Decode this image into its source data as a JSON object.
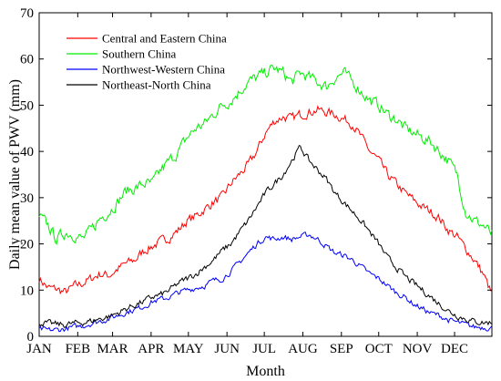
{
  "chart_data": {
    "type": "line",
    "title": "",
    "xlabel": "Month",
    "ylabel": "Daily mean value of PWV (mm)",
    "ylim": [
      0,
      70
    ],
    "xlim": [
      1,
      365
    ],
    "yticks": [
      0,
      10,
      20,
      30,
      40,
      50,
      60,
      70
    ],
    "month_ticks": [
      {
        "label": "JAN",
        "day": 1
      },
      {
        "label": "FEB",
        "day": 32
      },
      {
        "label": "MAR",
        "day": 60
      },
      {
        "label": "APR",
        "day": 91
      },
      {
        "label": "MAY",
        "day": 121
      },
      {
        "label": "JUN",
        "day": 152
      },
      {
        "label": "JUL",
        "day": 182
      },
      {
        "label": "AUG",
        "day": 213
      },
      {
        "label": "SEP",
        "day": 244
      },
      {
        "label": "OCT",
        "day": 274
      },
      {
        "label": "NOV",
        "day": 305
      },
      {
        "label": "DEC",
        "day": 335
      }
    ],
    "grid": false,
    "legend_position": "top-left",
    "series": [
      {
        "name": "Central and Eastern China",
        "color": "#ff0000",
        "x": [
          1,
          8,
          15,
          22,
          29,
          36,
          43,
          50,
          57,
          64,
          71,
          78,
          85,
          92,
          99,
          106,
          113,
          120,
          127,
          134,
          141,
          148,
          155,
          162,
          169,
          176,
          183,
          190,
          197,
          204,
          211,
          218,
          225,
          232,
          239,
          246,
          253,
          260,
          267,
          274,
          281,
          288,
          295,
          302,
          309,
          316,
          323,
          330,
          337,
          344,
          351,
          358,
          365
        ],
        "values": [
          12.5,
          10.5,
          10.2,
          9.5,
          10.8,
          11.5,
          12.5,
          13.5,
          13.2,
          14.5,
          15.8,
          16.5,
          18.5,
          19.5,
          20.5,
          21.5,
          23,
          25,
          26,
          27.5,
          29,
          30,
          33,
          35,
          37,
          40,
          44,
          46.5,
          47.5,
          47,
          48,
          48.5,
          49,
          48.5,
          48,
          47,
          46,
          43,
          40,
          38,
          35,
          33,
          31,
          29.5,
          28,
          27,
          25.5,
          23,
          21.5,
          19,
          16.5,
          13.5,
          9
        ]
      },
      {
        "name": "Southern China",
        "color": "#00ee00",
        "x": [
          1,
          8,
          15,
          22,
          29,
          36,
          43,
          50,
          57,
          64,
          71,
          78,
          85,
          92,
          99,
          106,
          113,
          120,
          127,
          134,
          141,
          148,
          155,
          162,
          169,
          176,
          183,
          190,
          197,
          204,
          211,
          218,
          225,
          232,
          239,
          246,
          253,
          260,
          267,
          274,
          281,
          288,
          295,
          302,
          309,
          316,
          323,
          330,
          337,
          344,
          351,
          358,
          365
        ],
        "values": [
          26,
          24,
          21,
          22.5,
          22,
          21,
          23,
          25.5,
          27,
          29,
          31.5,
          32,
          33,
          33,
          36,
          38,
          40,
          43,
          45,
          46,
          48,
          50,
          51,
          53,
          55,
          56,
          57,
          58,
          57,
          55,
          57,
          56,
          55,
          54,
          56,
          57,
          55,
          53,
          51,
          50,
          48,
          47,
          45,
          44,
          43,
          42,
          40,
          38,
          35,
          27,
          25,
          24,
          22
        ]
      },
      {
        "name": "Northwest-Western China",
        "color": "#0000ff",
        "x": [
          1,
          8,
          15,
          22,
          29,
          36,
          43,
          50,
          57,
          64,
          71,
          78,
          85,
          92,
          99,
          106,
          113,
          120,
          127,
          134,
          141,
          148,
          155,
          162,
          169,
          176,
          183,
          190,
          197,
          204,
          211,
          218,
          225,
          232,
          239,
          246,
          253,
          260,
          267,
          274,
          281,
          288,
          295,
          302,
          309,
          316,
          323,
          330,
          337,
          344,
          351,
          358,
          365
        ],
        "values": [
          1.5,
          1.3,
          1.4,
          1.6,
          2,
          2.3,
          2.8,
          3.3,
          3.8,
          4.5,
          5.2,
          5.8,
          6.5,
          7.5,
          8,
          8.5,
          9.5,
          10,
          10.5,
          11,
          12,
          12.5,
          14,
          16,
          18,
          20,
          21.5,
          21,
          21.5,
          21,
          21.5,
          22,
          21,
          19.5,
          18,
          17.5,
          16.5,
          15,
          13.5,
          12.5,
          11,
          9.5,
          8.5,
          7,
          6,
          5,
          4.5,
          3.5,
          3,
          2.5,
          2,
          2,
          1.8
        ]
      },
      {
        "name": "Northeast-North China",
        "color": "#000000",
        "x": [
          1,
          8,
          15,
          22,
          29,
          36,
          43,
          50,
          57,
          64,
          71,
          78,
          85,
          92,
          99,
          106,
          113,
          120,
          127,
          134,
          141,
          148,
          155,
          162,
          169,
          176,
          183,
          190,
          197,
          204,
          211,
          218,
          225,
          232,
          239,
          246,
          253,
          260,
          267,
          274,
          281,
          288,
          295,
          302,
          309,
          316,
          323,
          330,
          337,
          344,
          351,
          358,
          365
        ],
        "values": [
          3,
          2.8,
          2.6,
          2.5,
          2.8,
          3,
          3.3,
          3.8,
          4.3,
          5,
          6,
          6.8,
          7.5,
          8.5,
          9,
          10,
          11.5,
          12.5,
          13.5,
          15,
          16.5,
          18.5,
          20,
          22.5,
          25,
          28,
          31,
          33,
          35,
          38,
          41,
          38,
          36,
          34,
          31,
          29,
          27,
          25,
          22.5,
          20,
          17,
          15,
          13,
          11.5,
          10,
          8.5,
          7,
          5.5,
          4.5,
          3.8,
          3.2,
          3,
          3
        ]
      }
    ]
  }
}
